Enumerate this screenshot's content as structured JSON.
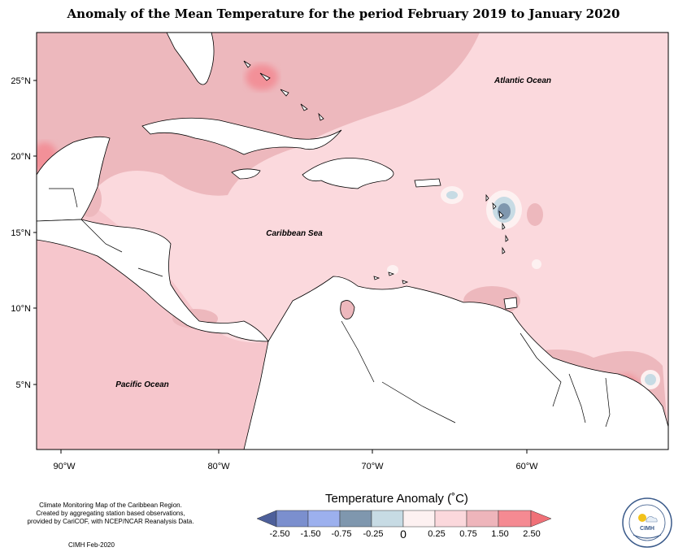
{
  "title": "Anomaly of the Mean Temperature for the period February 2019 to January 2020",
  "map": {
    "latitude_labels": [
      "25°N",
      "20°N",
      "15°N",
      "10°N",
      "5°N"
    ],
    "longitude_labels": [
      "90°W",
      "80°W",
      "70°W",
      "60°W"
    ],
    "region_labels": {
      "atlantic": "Atlantic Ocean",
      "caribbean": "Caribbean Sea",
      "pacific": "Pacific Ocean"
    }
  },
  "notes": {
    "line1": "Climate Monitoring Map of the Caribbean Region.",
    "line2": "Created by aggregating station based observations,",
    "line3": "provided by CariCOF, with NCEP/NCAR Reanalysis Data.",
    "credit": "CIMH Feb-2020"
  },
  "legend": {
    "title": "Temperature Anomaly (˚C)",
    "tick_labels": [
      "-2.50",
      "-1.50",
      "-0.75",
      "-0.25",
      "0",
      "0.25",
      "0.75",
      "1.50",
      "2.50"
    ],
    "colors": [
      "#4d5f9a",
      "#7b8fce",
      "#9cb0ee",
      "#7f97ae",
      "#c7dbe4",
      "#fdf1f1",
      "#fbd8dc",
      "#eeb5bb",
      "#f58a92",
      "#f07077"
    ]
  },
  "logo": {
    "text": "CIMH"
  }
}
